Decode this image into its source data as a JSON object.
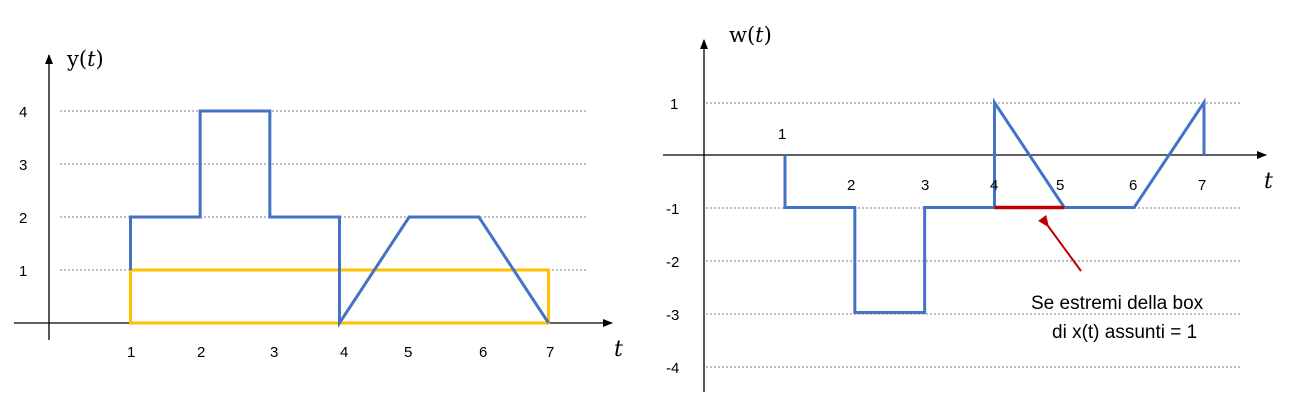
{
  "left_plot": {
    "ylabel_main": "y(",
    "ylabel_var": "t",
    "ylabel_close": ")",
    "xlabel": "t",
    "x_ticks": [
      "1",
      "2",
      "3",
      "4",
      "5",
      "6",
      "7"
    ],
    "y_ticks": [
      "1",
      "2",
      "3",
      "4"
    ],
    "signal_color": "#4472c4",
    "box_color": "#ffc000",
    "signal": [
      [
        1,
        1
      ],
      [
        1,
        2
      ],
      [
        2,
        2
      ],
      [
        2,
        4
      ],
      [
        3,
        4
      ],
      [
        3,
        2
      ],
      [
        4,
        2
      ],
      [
        4,
        0
      ],
      [
        5,
        2
      ],
      [
        6,
        2
      ],
      [
        7,
        0
      ]
    ],
    "box": {
      "x": [
        1,
        7
      ],
      "y": [
        0,
        1
      ]
    }
  },
  "right_plot": {
    "ylabel_main": "w(",
    "ylabel_var": "t",
    "ylabel_close": ")",
    "xlabel": "t",
    "x_ticks": [
      "1",
      "2",
      "3",
      "4",
      "5",
      "6",
      "7"
    ],
    "y_ticks": [
      "1",
      "-1",
      "-2",
      "-3",
      "-4"
    ],
    "signal_color": "#4472c4",
    "highlight_color": "#c00000",
    "arrow_color": "#c00000",
    "signal": [
      [
        1,
        0
      ],
      [
        1,
        -1
      ],
      [
        2,
        -1
      ],
      [
        2,
        -3
      ],
      [
        3,
        -3
      ],
      [
        3,
        -1
      ],
      [
        4,
        -1
      ],
      [
        4,
        1
      ],
      [
        5,
        -1
      ],
      [
        6,
        -1
      ],
      [
        7,
        1
      ],
      [
        7,
        0
      ]
    ],
    "highlight": {
      "x": [
        4,
        5
      ],
      "y": -1
    },
    "annotation_line1": "Se estremi della box",
    "annotation_line2": "di x(t) assunti = 1"
  }
}
